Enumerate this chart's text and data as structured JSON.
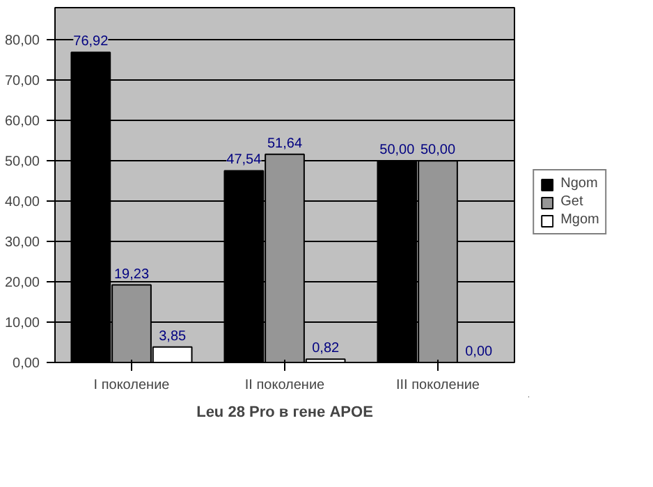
{
  "chart_data": {
    "type": "bar",
    "xlabel": "Leu 28 Pro в гене APOE",
    "categories": [
      "I поколение",
      "II поколение",
      "III поколение"
    ],
    "series": [
      {
        "name": "Ngom",
        "color": "#000000",
        "values": [
          76.92,
          47.54,
          50.0
        ],
        "value_labels": [
          "76,92",
          "47,54",
          "50,00"
        ]
      },
      {
        "name": "Get",
        "color": "#969696",
        "values": [
          19.23,
          51.64,
          50.0
        ],
        "value_labels": [
          "19,23",
          "51,64",
          "50,00"
        ]
      },
      {
        "name": "Mgom",
        "color": "#ffffff",
        "values": [
          3.85,
          0.82,
          0.0
        ],
        "value_labels": [
          "3,85",
          "0,82",
          "0,00"
        ]
      }
    ],
    "ylim": [
      0,
      88
    ],
    "yticks": [
      {
        "value": 0,
        "label": "0,00"
      },
      {
        "value": 10,
        "label": "10,00"
      },
      {
        "value": 20,
        "label": "20,00"
      },
      {
        "value": 30,
        "label": "30,00"
      },
      {
        "value": 40,
        "label": "40,00"
      },
      {
        "value": 50,
        "label": "50,00"
      },
      {
        "value": 60,
        "label": "60,00"
      },
      {
        "value": 70,
        "label": "70,00"
      },
      {
        "value": 80,
        "label": "80,00"
      }
    ],
    "grid": "y",
    "legend": "right"
  }
}
